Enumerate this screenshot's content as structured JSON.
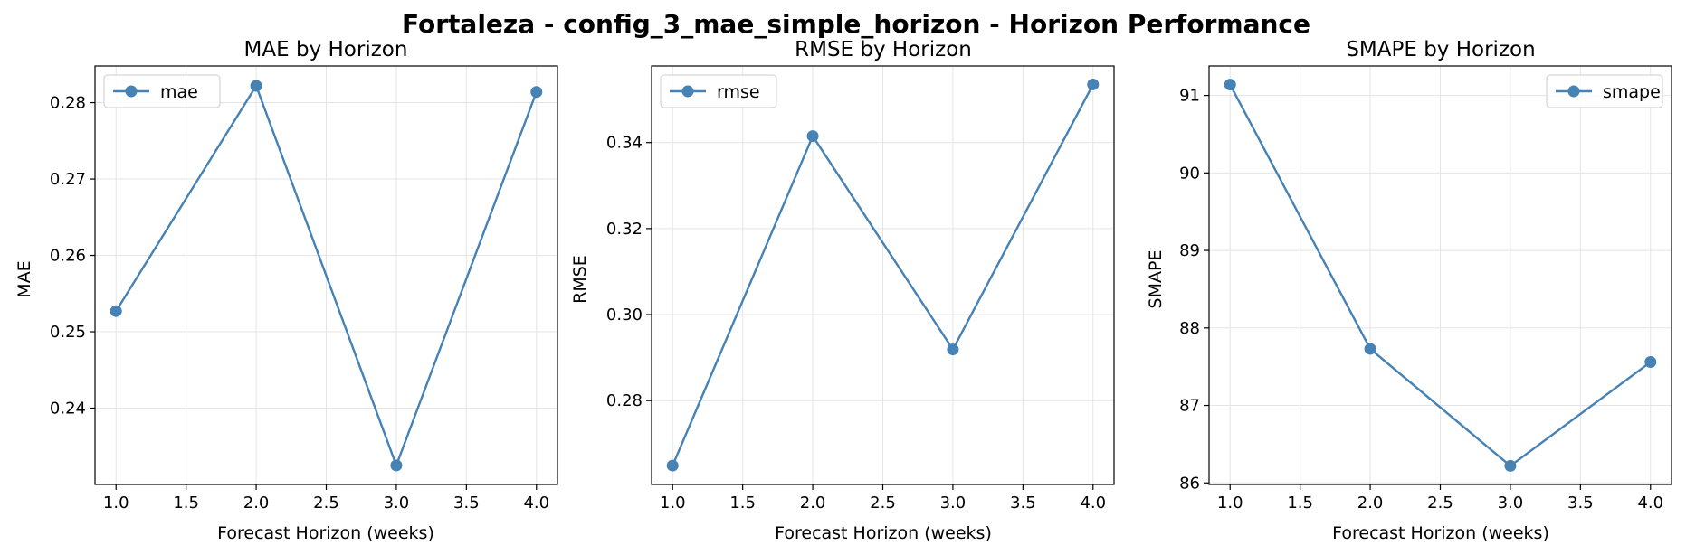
{
  "title": "Fortaleza - config_3_mae_simple_horizon - Horizon Performance",
  "colors": {
    "line": "#4682b4",
    "grid": "#e5e5e5",
    "axis": "#000000"
  },
  "chart_data": [
    {
      "type": "line",
      "title": "MAE by Horizon",
      "xlabel": "Forecast Horizon (weeks)",
      "ylabel": "MAE",
      "x": [
        1.0,
        2.0,
        3.0,
        4.0
      ],
      "series": [
        {
          "name": "mae",
          "values": [
            0.2527,
            0.2822,
            0.2325,
            0.2814
          ]
        }
      ],
      "xlim": [
        0.85,
        4.15
      ],
      "ylim": [
        0.23,
        0.2848
      ],
      "xticks": [
        "1.0",
        "1.5",
        "2.0",
        "2.5",
        "3.0",
        "3.5",
        "4.0"
      ],
      "yticks": [
        "0.24",
        "0.25",
        "0.26",
        "0.27",
        "0.28"
      ],
      "legend": "upper-left",
      "grid": true
    },
    {
      "type": "line",
      "title": "RMSE by Horizon",
      "xlabel": "Forecast Horizon (weeks)",
      "ylabel": "RMSE",
      "x": [
        1.0,
        2.0,
        3.0,
        4.0
      ],
      "series": [
        {
          "name": "rmse",
          "values": [
            0.2649,
            0.3415,
            0.2919,
            0.3535
          ]
        }
      ],
      "xlim": [
        0.85,
        4.15
      ],
      "ylim": [
        0.2605,
        0.3578
      ],
      "xticks": [
        "1.0",
        "1.5",
        "2.0",
        "2.5",
        "3.0",
        "3.5",
        "4.0"
      ],
      "yticks": [
        "0.28",
        "0.30",
        "0.32",
        "0.34"
      ],
      "legend": "upper-left",
      "grid": true
    },
    {
      "type": "line",
      "title": "SMAPE by Horizon",
      "xlabel": "Forecast Horizon (weeks)",
      "ylabel": "SMAPE",
      "x": [
        1.0,
        2.0,
        3.0,
        4.0
      ],
      "series": [
        {
          "name": "smape",
          "values": [
            91.14,
            87.73,
            86.22,
            87.56
          ]
        }
      ],
      "xlim": [
        0.85,
        4.15
      ],
      "ylim": [
        85.98,
        91.38
      ],
      "xticks": [
        "1.0",
        "1.5",
        "2.0",
        "2.5",
        "3.0",
        "3.5",
        "4.0"
      ],
      "yticks": [
        "86",
        "87",
        "88",
        "89",
        "90",
        "91"
      ],
      "legend": "upper-right",
      "grid": true
    }
  ]
}
